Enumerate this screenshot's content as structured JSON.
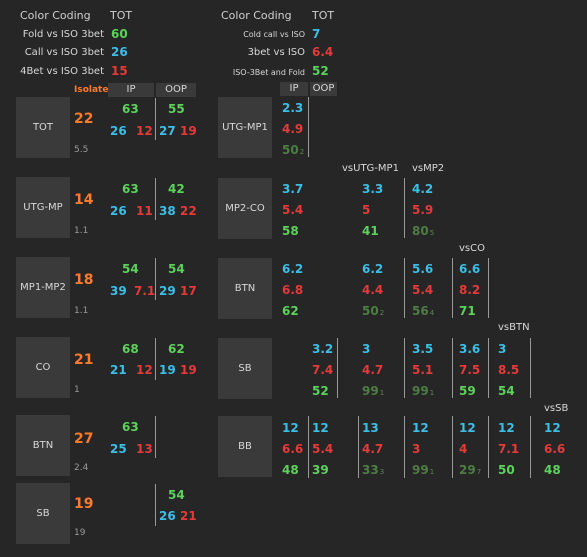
{
  "colors": {
    "orange": "#ff7a2a",
    "green": "#5cd25c",
    "blue": "#3bbfe6",
    "red": "#e53a3a",
    "darkgreen": "#4e7d44"
  },
  "left_legend": {
    "header_label": "Color Coding",
    "header_value": "TOT",
    "rows": [
      {
        "label": "Fold vs ISO 3bet",
        "value": "60",
        "color": "green"
      },
      {
        "label": "Call vs ISO 3bet",
        "value": "26",
        "color": "blue"
      },
      {
        "label": "4Bet vs ISO 3bet",
        "value": "15",
        "color": "red"
      }
    ],
    "isolate_label": "Isolate"
  },
  "right_legend": {
    "header_label": "Color Coding",
    "header_value": "TOT",
    "rows": [
      {
        "label": "Cold call vs ISO",
        "value": "7",
        "color": "blue"
      },
      {
        "label": "3bet vs ISO",
        "value": "6.4",
        "color": "red"
      },
      {
        "label": "ISO-3Bet and Fold",
        "value": "52",
        "color": "green"
      }
    ]
  },
  "left_columns": [
    "IP",
    "OOP"
  ],
  "right_columns": [
    "IP",
    "OOP"
  ],
  "left_rows": [
    {
      "pos": "TOT",
      "total": "22",
      "foot": "5.5",
      "ip": {
        "top": "63",
        "blue": "26",
        "red": "12"
      },
      "oop": {
        "top": "55",
        "blue": "27",
        "red": "19"
      }
    },
    {
      "pos": "UTG-MP",
      "total": "14",
      "foot": "1.1",
      "ip": {
        "top": "63",
        "blue": "26",
        "red": "11"
      },
      "oop": {
        "top": "42",
        "blue": "38",
        "red": "22"
      }
    },
    {
      "pos": "MP1-MP2",
      "total": "18",
      "foot": "1.1",
      "ip": {
        "top": "54",
        "blue": "39",
        "red": "7.1"
      },
      "oop": {
        "top": "54",
        "blue": "29",
        "red": "17"
      }
    },
    {
      "pos": "CO",
      "total": "21",
      "foot": "1",
      "ip": {
        "top": "68",
        "blue": "21",
        "red": "12"
      },
      "oop": {
        "top": "62",
        "blue": "19",
        "red": "19"
      }
    },
    {
      "pos": "BTN",
      "total": "27",
      "foot": "2.4",
      "ip": {
        "top": "63",
        "blue": "25",
        "red": "13"
      },
      "oop": null
    },
    {
      "pos": "SB",
      "total": "19",
      "foot": "19",
      "ip": null,
      "oop": {
        "top": "54",
        "blue": "26",
        "red": "21"
      }
    }
  ],
  "right_rows": [
    {
      "pos": "UTG-MP1"
    },
    {
      "pos": "MP2-CO"
    },
    {
      "pos": "BTN"
    },
    {
      "pos": "SB"
    },
    {
      "pos": "BB"
    }
  ],
  "vs_labels": [
    "vsUTG-MP1",
    "vsMP2",
    "vsCO",
    "vsBTN",
    "vsSB"
  ],
  "cells": [
    {
      "id": "u1",
      "b": "2.3",
      "r": "4.9",
      "g": "50",
      "gs": "2",
      "dim": true
    },
    {
      "id": "m1",
      "b": "3.7",
      "r": "5.4",
      "g": "58"
    },
    {
      "id": "m2",
      "b": "3.3",
      "r": "5",
      "g": "41"
    },
    {
      "id": "m3",
      "b": "4.2",
      "r": "5.9",
      "g": "80",
      "gs": "5",
      "dim": true
    },
    {
      "id": "b1",
      "b": "6.2",
      "r": "6.8",
      "g": "62"
    },
    {
      "id": "b2",
      "b": "6.2",
      "r": "4.4",
      "g": "50",
      "gs": "2",
      "dim": true
    },
    {
      "id": "b3",
      "b": "5.6",
      "r": "5.4",
      "g": "56",
      "gs": "4",
      "dim": true
    },
    {
      "id": "b4",
      "b": "6.6",
      "r": "8.2",
      "g": "71"
    },
    {
      "id": "s1",
      "b": "3.2",
      "r": "7.4",
      "g": "52"
    },
    {
      "id": "s2",
      "b": "3",
      "r": "4.7",
      "g": "99",
      "gs": "1",
      "dim": true
    },
    {
      "id": "s3",
      "b": "3.5",
      "r": "5.1",
      "g": "99",
      "gs": "1",
      "dim": true
    },
    {
      "id": "s4",
      "b": "3.6",
      "r": "7.5",
      "g": "59"
    },
    {
      "id": "s5",
      "b": "3",
      "r": "8.5",
      "g": "54"
    },
    {
      "id": "bb0",
      "b": "12",
      "r": "6.6",
      "g": "48"
    },
    {
      "id": "bb1",
      "b": "12",
      "r": "5.4",
      "g": "39"
    },
    {
      "id": "bb2",
      "b": "13",
      "r": "4.7",
      "g": "33",
      "gs": "3",
      "dim": true
    },
    {
      "id": "bb3",
      "b": "12",
      "r": "3",
      "g": "99",
      "gs": "1",
      "dim": true
    },
    {
      "id": "bb4",
      "b": "12",
      "r": "4",
      "g": "29",
      "gs": "7",
      "dim": true
    },
    {
      "id": "bb5",
      "b": "12",
      "r": "7.1",
      "g": "50"
    },
    {
      "id": "bb6",
      "b": "12",
      "r": "6.6",
      "g": "48"
    }
  ]
}
